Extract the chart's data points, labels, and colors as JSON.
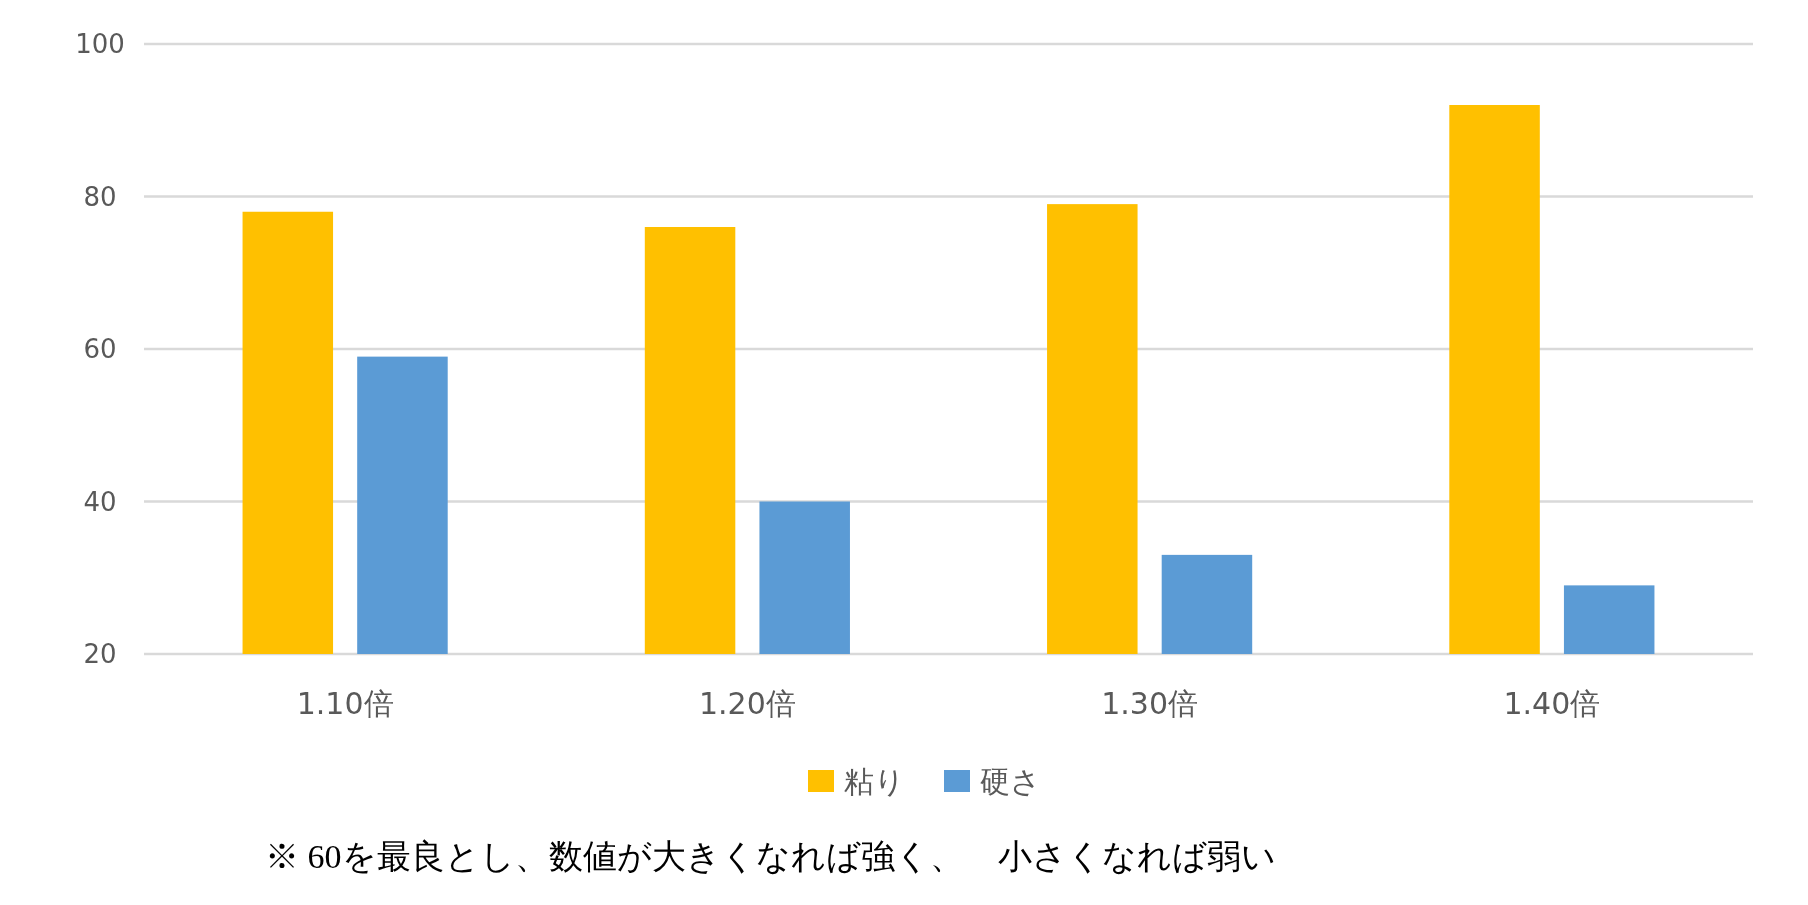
{
  "chart_data": {
    "type": "bar",
    "categories": [
      "1.10倍",
      "1.20倍",
      "1.30倍",
      "1.40倍"
    ],
    "series": [
      {
        "name": "粘り",
        "color": "#ffc000",
        "values": [
          78,
          76,
          79,
          92
        ]
      },
      {
        "name": "硬さ",
        "color": "#5b9bd5",
        "values": [
          59,
          40,
          33,
          29
        ]
      }
    ],
    "ylim": [
      20,
      100
    ],
    "yticks": [
      20,
      40,
      60,
      80,
      100
    ],
    "grid": "y",
    "legend": "bottom",
    "annotations": [
      "※ 60を最良とし、数値が大きくなれば強く、　小さくなれば弱い"
    ]
  }
}
